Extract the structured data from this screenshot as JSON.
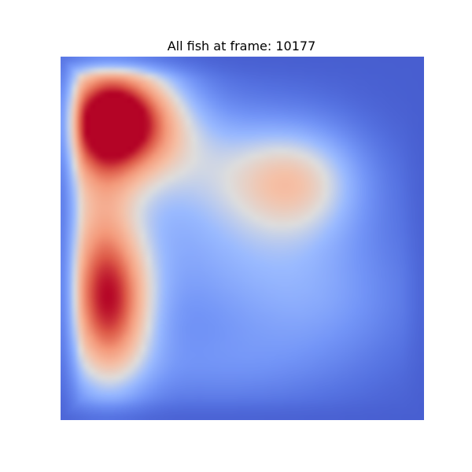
{
  "chart_data": {
    "type": "heatmap",
    "title": "All fish at frame: 10177",
    "xlabel": "",
    "ylabel": "",
    "axes_visible": false,
    "grid": false,
    "legend": "none",
    "colormap": "coolwarm",
    "color_range": [
      0,
      1
    ],
    "domain": {
      "x": [
        0,
        1
      ],
      "y": [
        0,
        1
      ],
      "origin": "top-left"
    },
    "background_level": 0.06,
    "density_components": [
      {
        "name": "hotspot-top-left",
        "cx": 0.16,
        "cy": 0.17,
        "sx": 0.12,
        "sy": 0.11,
        "amplitude": 0.94
      },
      {
        "name": "hotspot-lower-left",
        "cx": 0.14,
        "cy": 0.69,
        "sx": 0.085,
        "sy": 0.15,
        "amplitude": 0.62
      },
      {
        "name": "hotspot-center-right",
        "cx": 0.65,
        "cy": 0.34,
        "sx": 0.13,
        "sy": 0.11,
        "amplitude": 0.42
      },
      {
        "name": "diffuse-center",
        "cx": 0.45,
        "cy": 0.53,
        "sx": 0.25,
        "sy": 0.18,
        "amplitude": 0.22
      },
      {
        "name": "band-left",
        "cx": 0.1,
        "cy": 0.45,
        "sx": 0.08,
        "sy": 0.3,
        "amplitude": 0.35
      },
      {
        "name": "diffuse-upper-mid",
        "cx": 0.38,
        "cy": 0.28,
        "sx": 0.16,
        "sy": 0.12,
        "amplitude": 0.2
      },
      {
        "name": "diffuse-lower-right",
        "cx": 0.72,
        "cy": 0.68,
        "sx": 0.18,
        "sy": 0.14,
        "amplitude": 0.16
      },
      {
        "name": "diffuse-bottom",
        "cx": 0.4,
        "cy": 0.86,
        "sx": 0.22,
        "sy": 0.08,
        "amplitude": 0.12
      }
    ],
    "edge_falloff": 0.06
  }
}
